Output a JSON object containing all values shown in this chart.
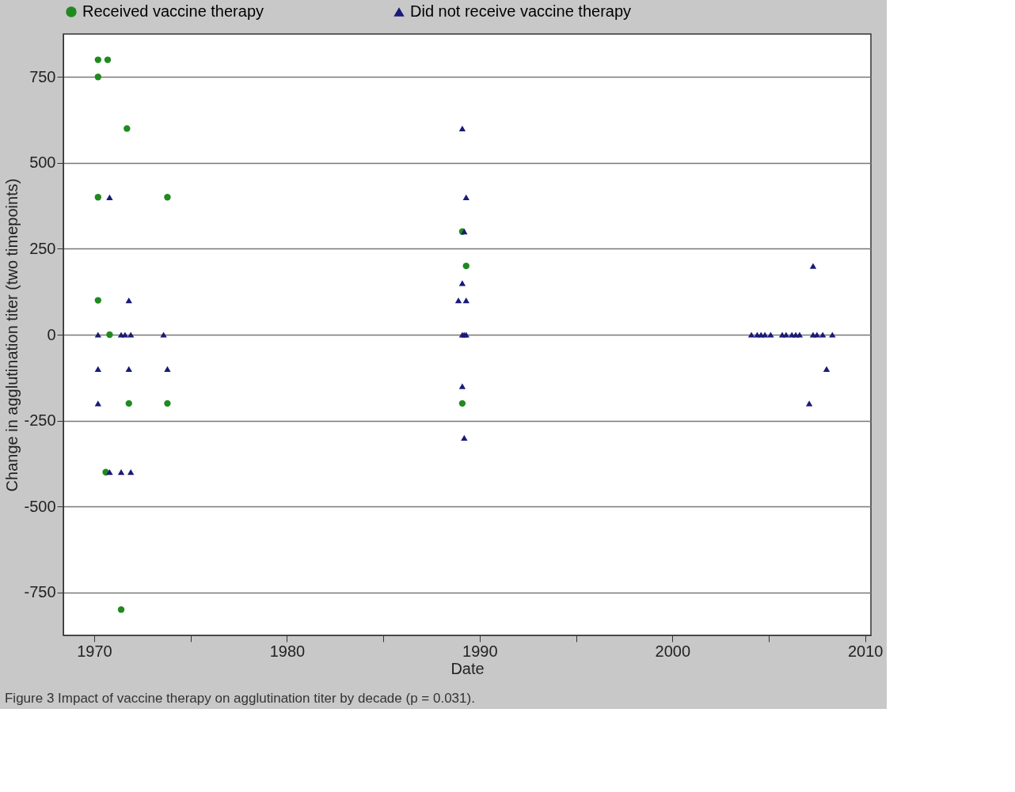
{
  "chart_data": {
    "type": "scatter",
    "xlabel": "Date",
    "ylabel": "Change in agglutination titer (two timepoints)",
    "annotations": [
      "Figure 3 Impact of vaccine therapy on agglutination titer by decade (p = 0.031)."
    ],
    "xlim": [
      1968.4,
      2010.3
    ],
    "ylim": [
      -875,
      875
    ],
    "xticks": [
      1970,
      {
        "value": 1975,
        "label": null
      },
      1980,
      {
        "value": 1985,
        "label": null
      },
      1990,
      {
        "value": 1995,
        "label": null
      },
      2000,
      {
        "value": 2005,
        "label": null
      },
      2010
    ],
    "yticks": [
      -750,
      -500,
      -250,
      0,
      250,
      500,
      750
    ],
    "grid": "y",
    "legend": "top",
    "series": [
      {
        "name": "Received vaccine therapy",
        "color": "#1f8a1f",
        "marker": "circle",
        "x": [
          1970.2,
          1970.7,
          1970.2,
          1971.7,
          1970.2,
          1973.8,
          1970.2,
          1970.8,
          1971.8,
          1973.8,
          1971.4,
          1970.6,
          1989.1,
          1989.3,
          1989.1
        ],
        "values": [
          800,
          800,
          750,
          600,
          400,
          400,
          100,
          0,
          -200,
          -200,
          -800,
          -400,
          300,
          200,
          -200
        ]
      },
      {
        "name": "Did not receive vaccine therapy",
        "color": "#1a1a78",
        "marker": "triangle",
        "x": [
          1970.8,
          1970.2,
          1971.4,
          1971.6,
          1971.9,
          1973.6,
          1971.8,
          1970.2,
          1971.8,
          1973.8,
          1970.2,
          1970.8,
          1971.4,
          1971.9,
          1989.1,
          1989.3,
          1989.2,
          1989.1,
          1988.9,
          1989.3,
          1989.1,
          1989.2,
          1989.3,
          1989.1,
          1989.2,
          2004.1,
          2004.4,
          2004.6,
          2004.8,
          2005.1,
          2005.7,
          2005.9,
          2006.2,
          2006.4,
          2006.6,
          2007.3,
          2007.5,
          2007.8,
          2008.3,
          2007.3,
          2008.0,
          2007.1
        ],
        "values": [
          400,
          0,
          0,
          0,
          0,
          0,
          100,
          -100,
          -100,
          -100,
          -200,
          -400,
          -400,
          -400,
          600,
          400,
          300,
          150,
          100,
          100,
          0,
          0,
          0,
          -150,
          -300,
          0,
          0,
          0,
          0,
          0,
          0,
          0,
          0,
          0,
          0,
          0,
          0,
          0,
          0,
          200,
          -100,
          -200
        ]
      }
    ]
  }
}
